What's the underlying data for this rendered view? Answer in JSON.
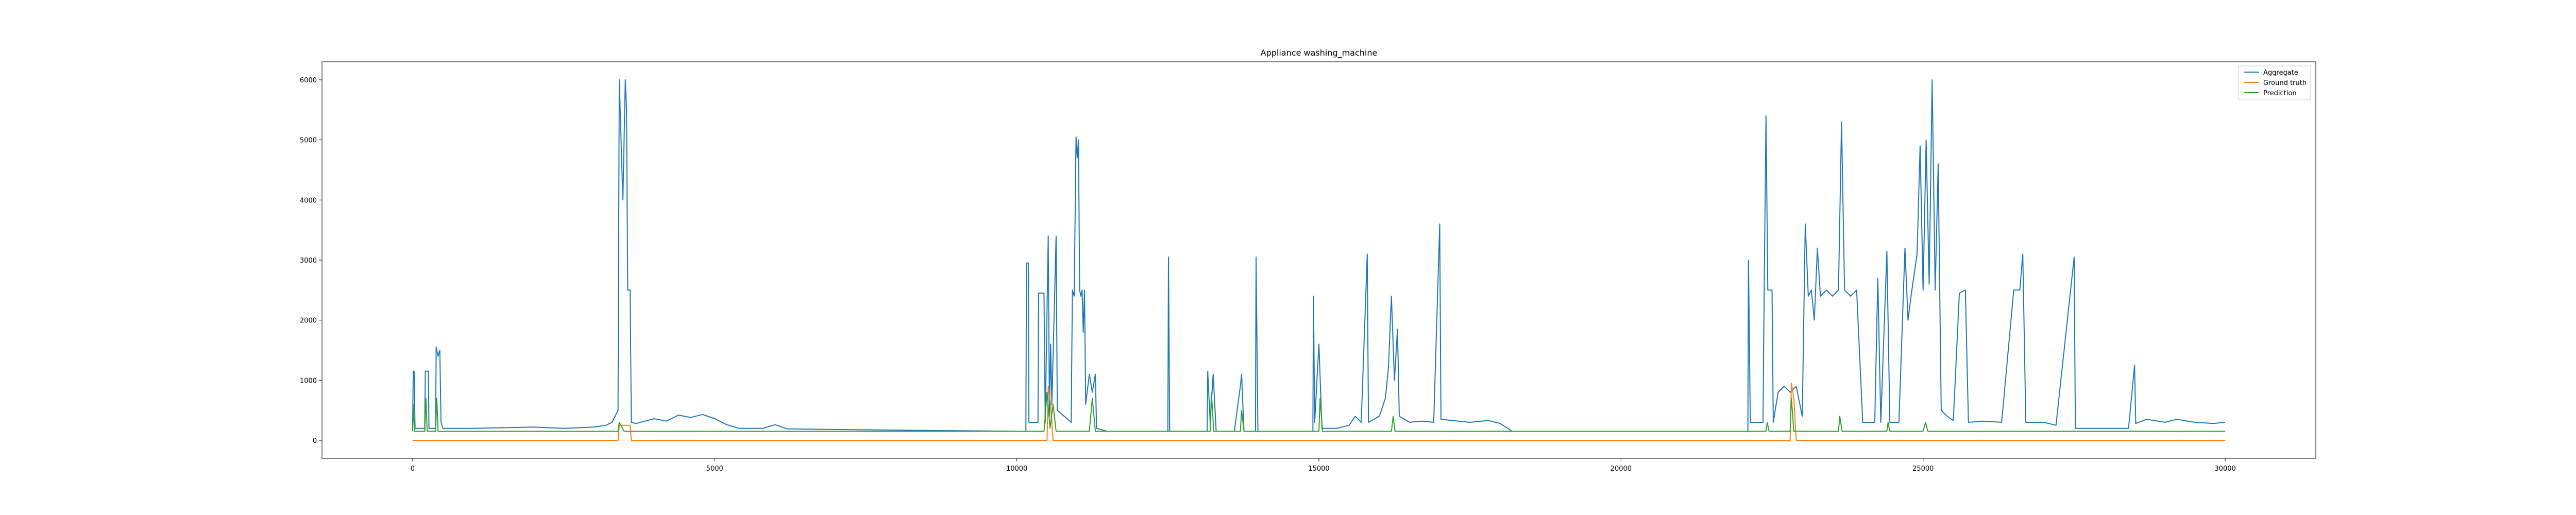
{
  "chart_data": {
    "type": "line",
    "title": "Appliance washing_machine",
    "xlabel": "",
    "ylabel": "",
    "xlim": [
      -1500,
      31500
    ],
    "ylim": [
      -300,
      6300
    ],
    "xticks": [
      0,
      5000,
      10000,
      15000,
      20000,
      25000,
      30000
    ],
    "yticks": [
      0,
      1000,
      2000,
      3000,
      4000,
      5000,
      6000
    ],
    "grid": false,
    "legend_position": "top-right",
    "series": [
      {
        "name": "Aggregate",
        "color": "#1f77b4",
        "points": [
          [
            0,
            200
          ],
          [
            10,
            1150
          ],
          [
            25,
            1150
          ],
          [
            40,
            200
          ],
          [
            200,
            200
          ],
          [
            210,
            1150
          ],
          [
            260,
            1150
          ],
          [
            270,
            200
          ],
          [
            380,
            200
          ],
          [
            390,
            1550
          ],
          [
            420,
            1400
          ],
          [
            450,
            1500
          ],
          [
            470,
            300
          ],
          [
            500,
            200
          ],
          [
            1000,
            200
          ],
          [
            1500,
            210
          ],
          [
            2000,
            220
          ],
          [
            2500,
            200
          ],
          [
            3000,
            220
          ],
          [
            3200,
            250
          ],
          [
            3300,
            300
          ],
          [
            3400,
            500
          ],
          [
            3420,
            6000
          ],
          [
            3480,
            4000
          ],
          [
            3520,
            6000
          ],
          [
            3540,
            5500
          ],
          [
            3560,
            2500
          ],
          [
            3600,
            2500
          ],
          [
            3620,
            300
          ],
          [
            3700,
            280
          ],
          [
            4000,
            360
          ],
          [
            4200,
            320
          ],
          [
            4400,
            420
          ],
          [
            4600,
            380
          ],
          [
            4800,
            430
          ],
          [
            5000,
            360
          ],
          [
            5200,
            260
          ],
          [
            5400,
            200
          ],
          [
            5800,
            200
          ],
          [
            6000,
            260
          ],
          [
            6200,
            190
          ],
          [
            7000,
            180
          ],
          [
            8000,
            170
          ],
          [
            9000,
            160
          ],
          [
            10000,
            150
          ],
          [
            10150,
            150
          ],
          [
            10160,
            2950
          ],
          [
            10190,
            2950
          ],
          [
            10200,
            300
          ],
          [
            10350,
            300
          ],
          [
            10360,
            2450
          ],
          [
            10450,
            2450
          ],
          [
            10470,
            300
          ],
          [
            10520,
            3400
          ],
          [
            10540,
            400
          ],
          [
            10560,
            1600
          ],
          [
            10580,
            600
          ],
          [
            10650,
            3400
          ],
          [
            10670,
            500
          ],
          [
            10900,
            300
          ],
          [
            10920,
            2500
          ],
          [
            10950,
            2400
          ],
          [
            10980,
            5050
          ],
          [
            11000,
            4700
          ],
          [
            11020,
            5000
          ],
          [
            11040,
            2500
          ],
          [
            11060,
            2400
          ],
          [
            11080,
            2500
          ],
          [
            11100,
            1800
          ],
          [
            11120,
            2500
          ],
          [
            11140,
            600
          ],
          [
            11200,
            1100
          ],
          [
            11250,
            800
          ],
          [
            11300,
            1100
          ],
          [
            11320,
            200
          ],
          [
            11500,
            150
          ],
          [
            12000,
            150
          ],
          [
            12500,
            150
          ],
          [
            12510,
            3050
          ],
          [
            12530,
            150
          ],
          [
            13000,
            150
          ],
          [
            13150,
            150
          ],
          [
            13160,
            1150
          ],
          [
            13200,
            300
          ],
          [
            13250,
            1100
          ],
          [
            13300,
            150
          ],
          [
            13600,
            150
          ],
          [
            13700,
            900
          ],
          [
            13720,
            1100
          ],
          [
            13760,
            150
          ],
          [
            13950,
            150
          ],
          [
            13960,
            3050
          ],
          [
            13990,
            150
          ],
          [
            14500,
            150
          ],
          [
            14900,
            150
          ],
          [
            14910,
            2400
          ],
          [
            14930,
            300
          ],
          [
            15000,
            1600
          ],
          [
            15050,
            200
          ],
          [
            15300,
            200
          ],
          [
            15500,
            250
          ],
          [
            15600,
            400
          ],
          [
            15700,
            300
          ],
          [
            15800,
            3100
          ],
          [
            15820,
            300
          ],
          [
            16000,
            400
          ],
          [
            16100,
            700
          ],
          [
            16150,
            1200
          ],
          [
            16200,
            2400
          ],
          [
            16250,
            1000
          ],
          [
            16300,
            1850
          ],
          [
            16330,
            400
          ],
          [
            16500,
            300
          ],
          [
            16700,
            320
          ],
          [
            16900,
            300
          ],
          [
            17000,
            3600
          ],
          [
            17020,
            350
          ],
          [
            17500,
            300
          ],
          [
            17800,
            330
          ],
          [
            18000,
            280
          ],
          [
            18200,
            150
          ],
          [
            19000,
            150
          ],
          [
            20000,
            150
          ],
          [
            21000,
            150
          ],
          [
            22000,
            150
          ],
          [
            22100,
            150
          ],
          [
            22110,
            3000
          ],
          [
            22140,
            300
          ],
          [
            22350,
            300
          ],
          [
            22370,
            2550
          ],
          [
            22400,
            5400
          ],
          [
            22430,
            2500
          ],
          [
            22500,
            2500
          ],
          [
            22520,
            300
          ],
          [
            22600,
            800
          ],
          [
            22700,
            900
          ],
          [
            22800,
            800
          ],
          [
            22900,
            900
          ],
          [
            23000,
            400
          ],
          [
            23050,
            3600
          ],
          [
            23100,
            2400
          ],
          [
            23150,
            2500
          ],
          [
            23200,
            2000
          ],
          [
            23250,
            3200
          ],
          [
            23300,
            2400
          ],
          [
            23400,
            2500
          ],
          [
            23500,
            2400
          ],
          [
            23600,
            2500
          ],
          [
            23650,
            5300
          ],
          [
            23700,
            2500
          ],
          [
            23800,
            2400
          ],
          [
            23900,
            2500
          ],
          [
            24000,
            300
          ],
          [
            24200,
            300
          ],
          [
            24250,
            2700
          ],
          [
            24300,
            300
          ],
          [
            24400,
            3150
          ],
          [
            24450,
            300
          ],
          [
            24600,
            300
          ],
          [
            24700,
            3200
          ],
          [
            24750,
            2000
          ],
          [
            24800,
            2400
          ],
          [
            24900,
            3100
          ],
          [
            24950,
            4900
          ],
          [
            25000,
            2500
          ],
          [
            25050,
            5000
          ],
          [
            25100,
            2600
          ],
          [
            25150,
            6000
          ],
          [
            25200,
            2500
          ],
          [
            25250,
            4600
          ],
          [
            25300,
            500
          ],
          [
            25400,
            400
          ],
          [
            25500,
            330
          ],
          [
            25600,
            2450
          ],
          [
            25700,
            2500
          ],
          [
            25750,
            300
          ],
          [
            26000,
            320
          ],
          [
            26300,
            300
          ],
          [
            26500,
            2500
          ],
          [
            26600,
            2500
          ],
          [
            26650,
            3100
          ],
          [
            26700,
            300
          ],
          [
            27000,
            300
          ],
          [
            27200,
            250
          ],
          [
            27500,
            3050
          ],
          [
            27520,
            200
          ],
          [
            28000,
            200
          ],
          [
            28400,
            200
          ],
          [
            28500,
            1250
          ],
          [
            28520,
            280
          ],
          [
            28700,
            350
          ],
          [
            29000,
            300
          ],
          [
            29200,
            350
          ],
          [
            29500,
            300
          ],
          [
            29800,
            280
          ],
          [
            30000,
            300
          ]
        ]
      },
      {
        "name": "Ground truth",
        "color": "#ff7f0e",
        "points": [
          [
            0,
            0
          ],
          [
            3400,
            0
          ],
          [
            3420,
            250
          ],
          [
            3600,
            250
          ],
          [
            3620,
            0
          ],
          [
            10500,
            0
          ],
          [
            10520,
            900
          ],
          [
            10560,
            600
          ],
          [
            10600,
            0
          ],
          [
            22800,
            0
          ],
          [
            22820,
            950
          ],
          [
            22860,
            700
          ],
          [
            22900,
            0
          ],
          [
            30000,
            0
          ]
        ]
      },
      {
        "name": "Prediction",
        "color": "#2ca02c",
        "points": [
          [
            0,
            150
          ],
          [
            10,
            600
          ],
          [
            30,
            150
          ],
          [
            200,
            150
          ],
          [
            220,
            700
          ],
          [
            240,
            150
          ],
          [
            380,
            150
          ],
          [
            400,
            700
          ],
          [
            420,
            150
          ],
          [
            3400,
            150
          ],
          [
            3420,
            300
          ],
          [
            3500,
            150
          ],
          [
            3600,
            150
          ],
          [
            10450,
            150
          ],
          [
            10500,
            800
          ],
          [
            10550,
            200
          ],
          [
            10600,
            600
          ],
          [
            10650,
            150
          ],
          [
            11200,
            150
          ],
          [
            11250,
            700
          ],
          [
            11300,
            150
          ],
          [
            13200,
            150
          ],
          [
            13220,
            800
          ],
          [
            13260,
            150
          ],
          [
            13700,
            150
          ],
          [
            13720,
            500
          ],
          [
            13760,
            150
          ],
          [
            15000,
            150
          ],
          [
            15020,
            700
          ],
          [
            15060,
            150
          ],
          [
            16200,
            150
          ],
          [
            16230,
            400
          ],
          [
            16260,
            150
          ],
          [
            22400,
            150
          ],
          [
            22420,
            300
          ],
          [
            22450,
            150
          ],
          [
            22800,
            150
          ],
          [
            22820,
            700
          ],
          [
            22860,
            150
          ],
          [
            23600,
            150
          ],
          [
            23620,
            400
          ],
          [
            23660,
            150
          ],
          [
            24400,
            150
          ],
          [
            24420,
            300
          ],
          [
            24450,
            150
          ],
          [
            25000,
            150
          ],
          [
            25040,
            300
          ],
          [
            25080,
            150
          ],
          [
            30000,
            150
          ]
        ]
      }
    ]
  }
}
